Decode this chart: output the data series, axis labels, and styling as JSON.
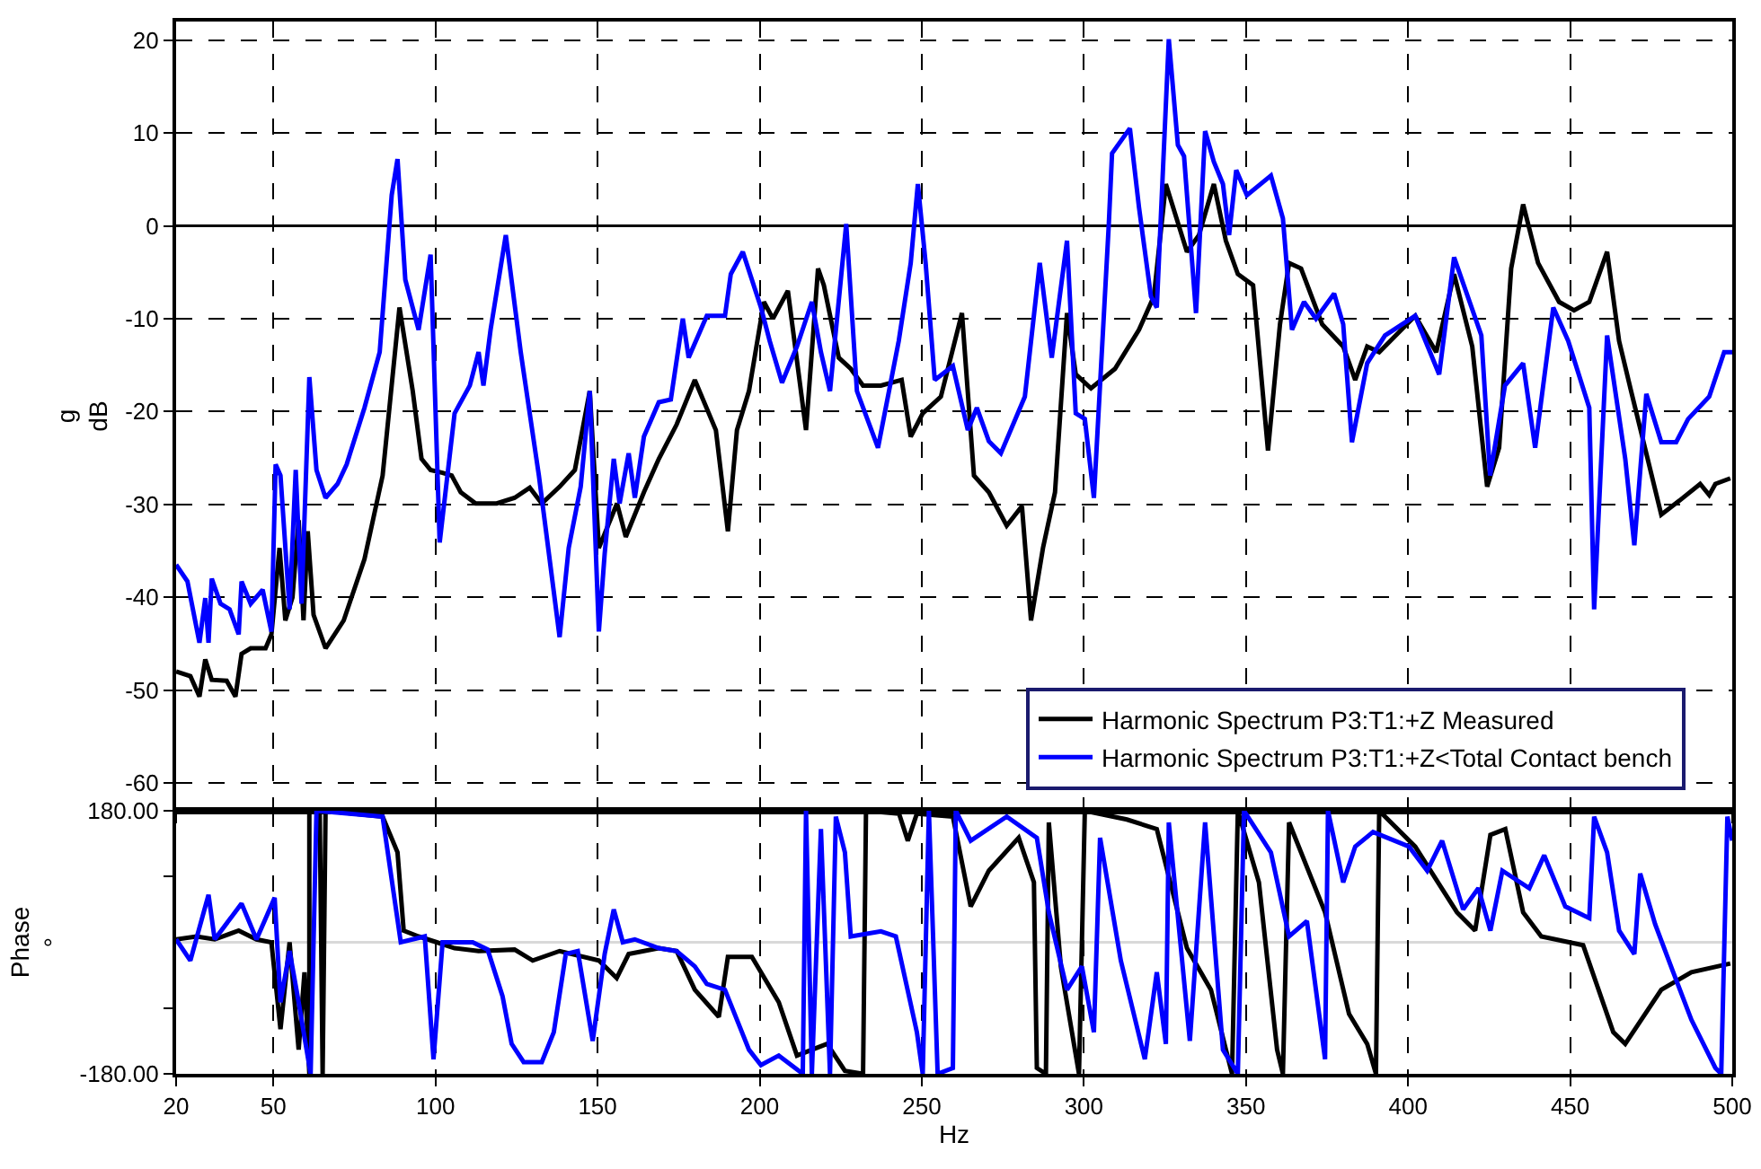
{
  "chart_data": [
    {
      "type": "line",
      "ylabel": "g\ndB",
      "xlim": [
        20,
        500
      ],
      "xticks": [
        20,
        50,
        100,
        150,
        200,
        250,
        300,
        350,
        400,
        450,
        500
      ],
      "ylim": [
        -63,
        22
      ],
      "yticks": [
        -60,
        -50,
        -40,
        -30,
        -20,
        -10,
        0,
        10,
        20
      ],
      "grid": true,
      "legend": "bottom right",
      "tick_labels": "y",
      "line_style": "solid",
      "marker": "none",
      "ref_lines": [
        {
          "axis": "y",
          "value": 0,
          "color": "#000000",
          "line_style": "solid"
        }
      ],
      "series": [
        {
          "name": "Harmonic Spectrum P3:T1:+Z Measured",
          "color": "#000000",
          "x": [
            20,
            24.4,
            27.2,
            29,
            31,
            35.6,
            38.3,
            40.2,
            43,
            47.6,
            49.4,
            51.9,
            53.7,
            55.9,
            57.8,
            59.3,
            60.6,
            62.4,
            66.1,
            71.7,
            78.1,
            83.7,
            88.9,
            93,
            95.7,
            98.5,
            102.2,
            105,
            107.8,
            112.4,
            118.9,
            124.4,
            129.1,
            132.8,
            138.3,
            143,
            147.6,
            150.4,
            156,
            158.7,
            164.3,
            168.9,
            174.4,
            180,
            186.5,
            190.2,
            193,
            196.7,
            201.3,
            204.1,
            208.7,
            214.3,
            218,
            219.8,
            224.4,
            228.1,
            231.9,
            237.4,
            243.8,
            246.6,
            250.3,
            255.9,
            262.4,
            266.1,
            270.7,
            276.2,
            280.9,
            283.7,
            287.4,
            291.1,
            294.8,
            297.5,
            302.2,
            309.6,
            317,
            321.6,
            325.3,
            331.8,
            335.5,
            340.1,
            343.8,
            347.5,
            352.2,
            356.8,
            360.5,
            363.3,
            367,
            373.5,
            380,
            383.7,
            387.4,
            391.1,
            402.2,
            408.7,
            414.2,
            419.8,
            424.4,
            428.1,
            431.8,
            435.5,
            440.1,
            446.6,
            451.2,
            455.9,
            461.4,
            465.1,
            468.8,
            478.1,
            483.7,
            490.1,
            492.9,
            494.8,
            499.4
          ],
          "values": [
            -48,
            -48.5,
            -50.7,
            -46.7,
            -48.9,
            -49,
            -50.7,
            -46.1,
            -45.5,
            -45.5,
            -44,
            -34.7,
            -42.5,
            -40,
            -31.7,
            -42.5,
            -32.9,
            -41.9,
            -45.5,
            -42.5,
            -35.9,
            -26.9,
            -8.8,
            -17.8,
            -25.1,
            -26.3,
            -26.6,
            -26.9,
            -28.7,
            -29.9,
            -29.9,
            -29.3,
            -28.2,
            -29.9,
            -28.1,
            -26.3,
            -17.8,
            -34.7,
            -29.9,
            -33.5,
            -28.7,
            -25.1,
            -21.4,
            -16.6,
            -22,
            -32.9,
            -22,
            -17.8,
            -8.2,
            -10,
            -7,
            -22,
            -4.6,
            -6.4,
            -14.2,
            -15.4,
            -17.2,
            -17.2,
            -16.6,
            -22.7,
            -20.2,
            -18.4,
            -9.4,
            -26.9,
            -28.7,
            -32.3,
            -30.2,
            -42.5,
            -34.7,
            -28.7,
            -9.4,
            -16,
            -17.5,
            -15.4,
            -11.2,
            -7.6,
            4.5,
            -2.8,
            -1,
            4.5,
            -1.6,
            -5.2,
            -6.4,
            -24.2,
            -10.6,
            -4,
            -4.6,
            -10.6,
            -13,
            -16.6,
            -13,
            -13.6,
            -9.7,
            -13.6,
            -5.2,
            -13,
            -28.1,
            -23.9,
            -4.6,
            2.3,
            -4,
            -8.2,
            -9.1,
            -8.2,
            -2.8,
            -12.4,
            -17.8,
            -31.1,
            -29.6,
            -27.8,
            -29,
            -27.8,
            -27.2
          ]
        },
        {
          "name": "Harmonic Spectrum P3:T1:+Z<Total Contact bench",
          "color": "#0000ff",
          "x": [
            20,
            23.5,
            27.2,
            29,
            30,
            31,
            33.7,
            36.5,
            39.3,
            40.2,
            43,
            46.7,
            49.4,
            50.7,
            52.2,
            55,
            56.9,
            58.7,
            61.1,
            63.3,
            66.1,
            69.8,
            72.6,
            78.1,
            82.8,
            86.5,
            88.3,
            90.7,
            94.8,
            98.5,
            101.3,
            105.9,
            110.6,
            113.3,
            114.8,
            117,
            121.7,
            126.3,
            131.9,
            138.3,
            141.1,
            144.8,
            147.6,
            150.4,
            152.2,
            155,
            156.8,
            159.6,
            161.5,
            164.3,
            168.9,
            172.6,
            176.3,
            178.1,
            183.7,
            189.3,
            191.1,
            194.8,
            200.4,
            203.1,
            206.9,
            211.5,
            216.1,
            218.9,
            221.7,
            226.7,
            230,
            236.5,
            242.9,
            246.6,
            248.8,
            251.2,
            254,
            259.6,
            264.2,
            267,
            270.7,
            274.4,
            281.8,
            286.4,
            290.1,
            294.8,
            297.5,
            300.3,
            303.1,
            307.7,
            308.7,
            314.2,
            317,
            320.7,
            322.5,
            326.2,
            329,
            330.9,
            334.6,
            337.4,
            340.1,
            342.9,
            344.8,
            347,
            350.3,
            357.7,
            361.4,
            364.2,
            367.9,
            371.6,
            377.2,
            380,
            382.7,
            387.4,
            392.9,
            402.2,
            409.6,
            414.2,
            422.6,
            425.3,
            429.9,
            435.5,
            439.2,
            444.8,
            449.4,
            455.9,
            457.4,
            461.4,
            467,
            469.8,
            473.5,
            478.1,
            482.7,
            486.4,
            492.9,
            497.5,
            500
          ],
          "values": [
            -36.5,
            -38.3,
            -44.9,
            -40.1,
            -44.9,
            -38,
            -40.7,
            -41.3,
            -44,
            -38.3,
            -40.7,
            -39.2,
            -43.7,
            -25.7,
            -26.9,
            -41.3,
            -26.3,
            -40.7,
            -16.3,
            -26.3,
            -29.3,
            -27.8,
            -25.7,
            -19.6,
            -13.6,
            3.3,
            7.2,
            -5.8,
            -11.2,
            -3.1,
            -34.1,
            -20.2,
            -17.2,
            -13.6,
            -17.2,
            -11.2,
            -1,
            -13.6,
            -26.9,
            -44.3,
            -34.7,
            -28.1,
            -17.8,
            -43.7,
            -35.3,
            -25.1,
            -29.9,
            -24.5,
            -29.3,
            -22.7,
            -19,
            -18.7,
            -10,
            -14.2,
            -9.7,
            -9.7,
            -5.2,
            -2.8,
            -8.8,
            -12.4,
            -16.9,
            -13,
            -8.2,
            -13.6,
            -17.8,
            0.2,
            -17.8,
            -23.9,
            -12.4,
            -4,
            4.5,
            -4,
            -16.6,
            -15.1,
            -22,
            -19.6,
            -23.2,
            -24.5,
            -18.4,
            -4,
            -14.2,
            -1.6,
            -20.2,
            -20.8,
            -29.3,
            0.2,
            7.8,
            10.5,
            2,
            -7.6,
            -8.8,
            20.1,
            8.7,
            7.5,
            -9.4,
            10.2,
            6.9,
            4.5,
            -1,
            6,
            3.3,
            5.4,
            0.8,
            -11.2,
            -8.2,
            -10,
            -7.3,
            -10.6,
            -23.3,
            -14.8,
            -11.8,
            -9.7,
            -16,
            -3.4,
            -11.8,
            -26.9,
            -17.2,
            -14.8,
            -23.9,
            -8.8,
            -12.4,
            -19.6,
            -41.3,
            -11.8,
            -25.1,
            -34.4,
            -18.1,
            -23.3,
            -23.3,
            -20.8,
            -18.4,
            -13.6,
            -13.6
          ]
        }
      ]
    },
    {
      "type": "line",
      "xlabel": "Hz",
      "ylabel": "Phase\n°",
      "xlim": [
        20,
        500
      ],
      "xticks": [
        20,
        50,
        100,
        150,
        200,
        250,
        300,
        350,
        400,
        450,
        500
      ],
      "ylim": [
        -180,
        180
      ],
      "yticks": [
        {
          "value": -180,
          "label": "-180.00"
        },
        {
          "value": -90,
          "label": null
        },
        {
          "value": 90,
          "label": null
        },
        {
          "value": 180,
          "label": "180.00"
        }
      ],
      "grid": "x",
      "line_style": "solid",
      "marker": "none",
      "ref_lines": [
        {
          "axis": "y",
          "value": 0,
          "color": "#d9d9d9",
          "line_style": "solid"
        }
      ],
      "series": [
        {
          "color": "#000000",
          "x": [
            20,
            26.3,
            31.9,
            39.3,
            44.8,
            49.4,
            52.2,
            55,
            57.8,
            59.6,
            61.1,
            61.1,
            64.3,
            65.2,
            66.1,
            83.7,
            88.3,
            90.2,
            94.8,
            100.4,
            105.9,
            113.3,
            124.4,
            130,
            138.3,
            150.4,
            155.9,
            159.6,
            168.9,
            174.4,
            180,
            187.4,
            190.2,
            197.6,
            205.9,
            211.5,
            220.8,
            226.3,
            231.9,
            232.8,
            243,
            245.7,
            248.5,
            259.6,
            265.1,
            270.7,
            279.9,
            284.6,
            285.5,
            288.3,
            289.2,
            292.9,
            298.5,
            300.3,
            313.3,
            322.5,
            331.8,
            339.2,
            345.7,
            347.5,
            354,
            359.6,
            361.4,
            363.3,
            374.4,
            381.8,
            387.4,
            390.1,
            391.1,
            402.2,
            415.1,
            420.7,
            425.4,
            430,
            435.5,
            441.1,
            454,
            463.3,
            467,
            478.1,
            487.4,
            499.4
          ],
          "values": [
            4,
            8,
            4,
            16,
            4,
            0,
            -119,
            0,
            -147,
            -41,
            -180,
            180,
            180,
            -180,
            180,
            172,
            123,
            16,
            8,
            0,
            -8,
            -12,
            -10,
            -25,
            -12,
            -25,
            -49,
            -16,
            -8,
            -12,
            -65,
            -102,
            -20,
            -20,
            -82,
            -155,
            -139,
            -176,
            -180,
            180,
            176,
            139,
            176,
            172,
            49,
            98,
            143,
            82,
            -172,
            -180,
            164,
            -33,
            -180,
            180,
            168,
            155,
            -8,
            -65,
            -180,
            180,
            82,
            -147,
            -180,
            164,
            41,
            -98,
            -139,
            -180,
            180,
            131,
            41,
            16,
            147,
            155,
            41,
            8,
            -4,
            -123,
            -139,
            -65,
            -41,
            -29
          ]
        },
        {
          "color": "#0000ff",
          "x": [
            20,
            24.4,
            30,
            31.9,
            40.2,
            44.8,
            50.4,
            52.2,
            55,
            57.8,
            61.5,
            63.3,
            83.7,
            89.3,
            96.7,
            99.4,
            102.2,
            111.5,
            116.1,
            120.7,
            123.5,
            127.2,
            132.8,
            136.5,
            140.2,
            143.9,
            148.5,
            152.2,
            155,
            157.8,
            161.5,
            168.9,
            174.4,
            180,
            183.7,
            189.3,
            196.7,
            200.4,
            205.9,
            213.3,
            214.3,
            216.1,
            218.9,
            221.7,
            223.5,
            226.3,
            228.1,
            237.4,
            242,
            248.5,
            250.3,
            252.2,
            254.9,
            259.6,
            260.5,
            265.1,
            276.2,
            285.5,
            289.2,
            294.8,
            299.4,
            303.1,
            305,
            311.4,
            318.8,
            322.5,
            325.3,
            326.2,
            332.7,
            337.4,
            342.9,
            347.5,
            349.4,
            357.7,
            363.3,
            368.8,
            374.4,
            375.3,
            380,
            383.7,
            389.2,
            400.3,
            405.9,
            410.5,
            417,
            421.7,
            425.4,
            429.1,
            437.4,
            442,
            448.5,
            455.9,
            457.4,
            461.4,
            465.1,
            469.8,
            471.6,
            476.2,
            481.8,
            487.4,
            494.8,
            496.6,
            498.5,
            500
          ],
          "values": [
            4,
            -25,
            65,
            4,
            53,
            4,
            61,
            -82,
            -12,
            -82,
            -180,
            180,
            172,
            0,
            8,
            -160,
            0,
            0,
            -10,
            -74,
            -139,
            -164,
            -164,
            -123,
            -16,
            -12,
            -135,
            -16,
            45,
            0,
            4,
            -8,
            -12,
            -33,
            -57,
            -65,
            -147,
            -168,
            -155,
            -180,
            180,
            -180,
            155,
            -180,
            172,
            123,
            8,
            15,
            8,
            -123,
            -180,
            180,
            -180,
            -172,
            180,
            139,
            172,
            143,
            41,
            -65,
            -33,
            -123,
            143,
            -25,
            -160,
            -41,
            -139,
            164,
            -135,
            164,
            -147,
            -180,
            180,
            123,
            8,
            29,
            -160,
            180,
            82,
            131,
            151,
            131,
            98,
            139,
            45,
            74,
            16,
            98,
            74,
            119,
            49,
            33,
            172,
            123,
            16,
            -16,
            94,
            25,
            -41,
            -106,
            -172,
            -180,
            172,
            139
          ]
        }
      ]
    }
  ]
}
